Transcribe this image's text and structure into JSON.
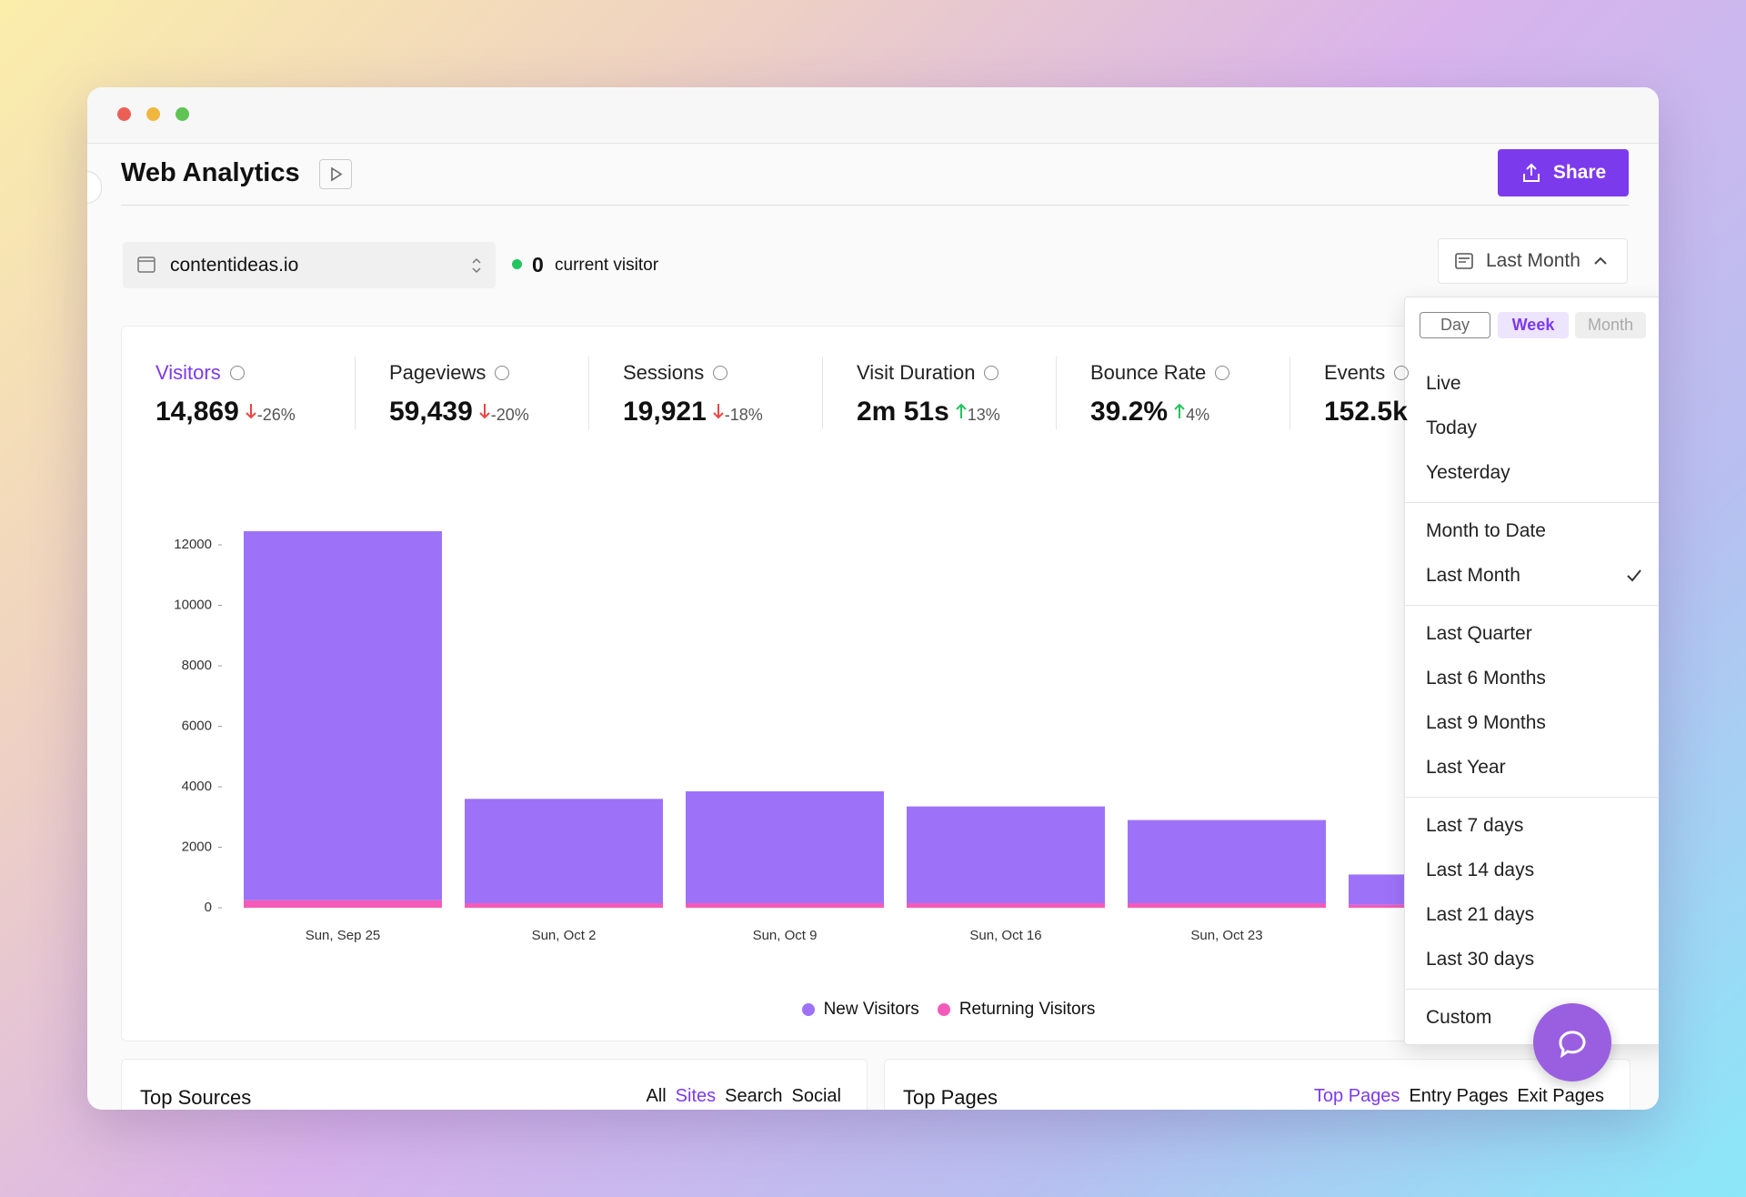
{
  "window": {
    "title": "Web Analytics",
    "share": "Share"
  },
  "site": {
    "domain": "contentideas.io",
    "visitors_now": "0",
    "visitors_label": "current visitor"
  },
  "date_range": "Last Month",
  "metrics": [
    {
      "label": "Visitors",
      "value": "14,869",
      "change": "-26%",
      "trend": "down"
    },
    {
      "label": "Pageviews",
      "value": "59,439",
      "change": "-20%",
      "trend": "down"
    },
    {
      "label": "Sessions",
      "value": "19,921",
      "change": "-18%",
      "trend": "down"
    },
    {
      "label": "Visit Duration",
      "value": "2m 51s",
      "change": "13%",
      "trend": "up"
    },
    {
      "label": "Bounce Rate",
      "value": "39.2%",
      "change": "4%",
      "trend": "up"
    },
    {
      "label": "Events",
      "value": "152.5k"
    }
  ],
  "active_metric": 0,
  "chart_data": {
    "type": "bar",
    "stacked": true,
    "categories": [
      "Sun, Sep 25",
      "Sun, Oct 2",
      "Sun, Oct 9",
      "Sun, Oct 16",
      "Sun, Oct 23",
      null
    ],
    "series": [
      {
        "name": "New Visitors",
        "color": "#9d72f9",
        "values": [
          12200,
          3450,
          3700,
          3200,
          2750,
          1000
        ]
      },
      {
        "name": "Returning Visitors",
        "color": "#f45bb8",
        "values": [
          250,
          150,
          150,
          150,
          150,
          100
        ]
      }
    ],
    "ylim": [
      0,
      12500
    ],
    "yticks": [
      0,
      2000,
      4000,
      6000,
      8000,
      10000,
      12000
    ]
  },
  "dropdown": {
    "tabs": [
      "Day",
      "Week",
      "Month"
    ],
    "active_tab": 1,
    "disabled_tab": 2,
    "groups": [
      [
        "Live",
        "Today",
        "Yesterday"
      ],
      [
        "Month to Date",
        "Last Month"
      ],
      [
        "Last Quarter",
        "Last 6 Months",
        "Last 9 Months",
        "Last Year"
      ],
      [
        "Last 7 days",
        "Last 14 days",
        "Last 21 days",
        "Last 30 days"
      ],
      [
        "Custom"
      ]
    ],
    "selected": [
      1,
      1
    ]
  },
  "panels": [
    {
      "title": "Top Sources",
      "tabs": [
        "All",
        "Sites",
        "Search",
        "Social"
      ],
      "active_tab": 1
    },
    {
      "title": "Top Pages",
      "tabs": [
        "Top Pages",
        "Entry Pages",
        "Exit Pages"
      ],
      "active_tab": 0
    }
  ]
}
